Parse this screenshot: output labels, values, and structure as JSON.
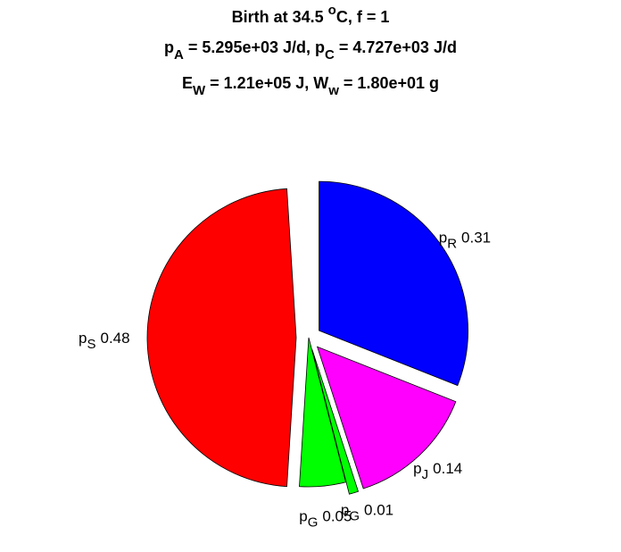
{
  "chart_data": {
    "type": "pie",
    "title": [
      [
        {
          "text": "Birth at 34.5 "
        },
        {
          "text": "o",
          "script": "sup"
        },
        {
          "text": "C, f = 1"
        }
      ],
      [
        {
          "text": "p"
        },
        {
          "text": "A",
          "script": "sub"
        },
        {
          "text": " = 5.295e+03 J/d, p"
        },
        {
          "text": "C",
          "script": "sub"
        },
        {
          "text": " = 4.727e+03 J/d"
        }
      ],
      [
        {
          "text": "E"
        },
        {
          "text": "W",
          "script": "sub"
        },
        {
          "text": " = 1.21e+05 J, W"
        },
        {
          "text": "w",
          "script": "sub"
        },
        {
          "text": " = 1.80e+01 g"
        }
      ]
    ],
    "labels": [
      {
        "base": "p",
        "sub": "R"
      },
      {
        "base": "p",
        "sub": "J"
      },
      {
        "base": "p",
        "sub": "G"
      },
      {
        "base": "p",
        "sub": "G"
      },
      {
        "base": "p",
        "sub": "S"
      }
    ],
    "values": [
      0.31,
      0.14,
      0.01,
      0.05,
      0.48
    ],
    "colors": [
      "#0000ff",
      "#ff00ff",
      "#00ff00",
      "#00ff00",
      "#ff0000"
    ],
    "explode": [
      true,
      true,
      true,
      false,
      true
    ]
  }
}
